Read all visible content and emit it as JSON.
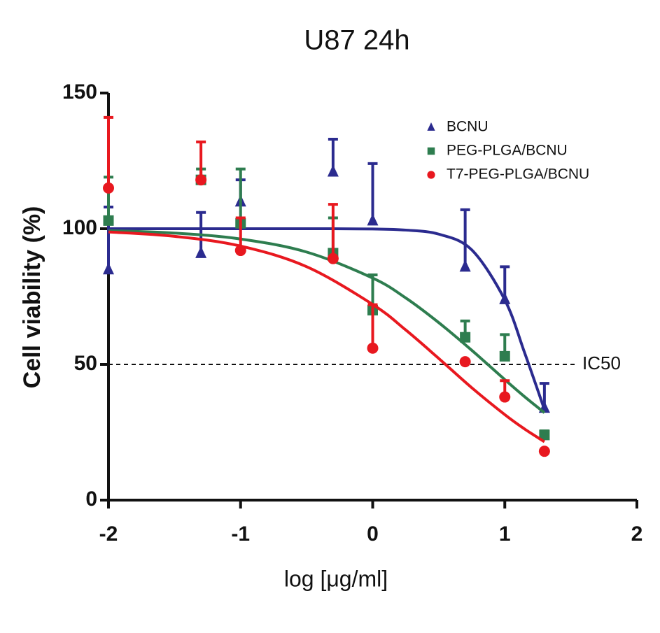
{
  "chart_data": {
    "type": "scatter",
    "title": "U87  24h",
    "x_label": "log [μg/ml]",
    "y_label": "Cell viability (%)",
    "xlim": [
      -2,
      2
    ],
    "xticks": [
      -2,
      -1,
      0,
      1,
      2
    ],
    "ylim": [
      0,
      150
    ],
    "yticks": [
      0,
      50,
      100,
      150
    ],
    "reference_line": {
      "value": 50,
      "label": "IC50"
    },
    "x": [
      -2,
      -1.3,
      -1,
      -0.3,
      0,
      0.7,
      1,
      1.3
    ],
    "fit_x": [
      -2,
      -1.5,
      -1,
      -0.5,
      0,
      0.25,
      0.5,
      0.75,
      1,
      1.15,
      1.3
    ],
    "series": [
      {
        "name": "BCNU",
        "color": "#2b2b8f",
        "marker": "triangle",
        "values": [
          85,
          91,
          110,
          121,
          103,
          86,
          74,
          34
        ],
        "errors": [
          23,
          15,
          8,
          12,
          21,
          21,
          12,
          9
        ],
        "fit_values": [
          100,
          100,
          100,
          100,
          99.9,
          99.5,
          98.0,
          92.2,
          73.8,
          54.3,
          33.4
        ]
      },
      {
        "name": "PEG-PLGA/BCNU",
        "color": "#2e7d4f",
        "marker": "square",
        "values": [
          103,
          118,
          102,
          91,
          70,
          60,
          53,
          24
        ],
        "errors": [
          16,
          4,
          20,
          13,
          13,
          6,
          8,
          1.5
        ],
        "fit_values": [
          99.3,
          98.4,
          96.2,
          91.4,
          81.8,
          74.5,
          65.4,
          55.2,
          44.4,
          38.1,
          32.2
        ]
      },
      {
        "name": "T7-PEG-PLGA/BCNU",
        "color": "#e8181f",
        "marker": "circle",
        "values": [
          115,
          118,
          92,
          89,
          56,
          51,
          38,
          18
        ],
        "errors": [
          26,
          14,
          12,
          20,
          16,
          0,
          6,
          0
        ],
        "fit_values": [
          98.8,
          97.2,
          93.6,
          86.0,
          72.1,
          62.7,
          52.2,
          41.4,
          31.5,
          26.2,
          21.5
        ]
      }
    ]
  }
}
